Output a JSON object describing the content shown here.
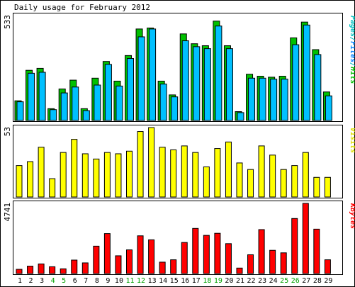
{
  "chart_data": {
    "type": "bar",
    "title": "Daily usage for February 2012",
    "categories": [
      "1",
      "2",
      "3",
      "4",
      "5",
      "6",
      "7",
      "8",
      "9",
      "10",
      "11",
      "12",
      "13",
      "14",
      "15",
      "16",
      "17",
      "18",
      "19",
      "20",
      "21",
      "22",
      "23",
      "24",
      "25",
      "26",
      "27",
      "28",
      "29"
    ],
    "weekend_categories": [
      "4",
      "5",
      "11",
      "12",
      "18",
      "19",
      "25",
      "26"
    ],
    "panels": [
      {
        "id": "top",
        "max_label": "533",
        "ymax": 533,
        "legend": [
          {
            "text": "Pages",
            "color": "#00c0c0"
          },
          {
            "text": "/",
            "color": "#00c0c0"
          },
          {
            "text": "Files",
            "color": "#0080ff"
          },
          {
            "text": "/",
            "color": "#00c0c0"
          },
          {
            "text": "Hits",
            "color": "#00c000"
          }
        ],
        "series": [
          {
            "name": "Hits",
            "color": "#00c000",
            "values": [
              100,
              255,
              265,
              60,
              160,
              205,
              60,
              215,
              300,
              200,
              330,
              465,
              470,
              200,
              130,
              440,
              390,
              380,
              505,
              380,
              45,
              235,
              225,
              220,
              225,
              420,
              500,
              360,
              145
            ]
          },
          {
            "name": "Files",
            "color": "#00c0ff",
            "values": [
              95,
              240,
              245,
              55,
              140,
              170,
              50,
              180,
              285,
              175,
              315,
              425,
              465,
              185,
              120,
              405,
              375,
              365,
              480,
              365,
              40,
              215,
              215,
              210,
              210,
              385,
              485,
              335,
              125
            ]
          },
          {
            "name": "Pages",
            "color": "#00b0b0",
            "values": [
              0,
              0,
              0,
              0,
              0,
              0,
              0,
              0,
              0,
              0,
              0,
              0,
              0,
              0,
              0,
              0,
              0,
              0,
              0,
              0,
              0,
              0,
              0,
              0,
              0,
              0,
              0,
              0,
              0
            ]
          }
        ]
      },
      {
        "id": "middle",
        "max_label": "53",
        "ymax": 53,
        "legend": [
          {
            "text": "Visits",
            "color": "#e0e000"
          }
        ],
        "series": [
          {
            "name": "Visits",
            "color": "#ffff00",
            "values": [
              24,
              27,
              38,
              14,
              34,
              44,
              33,
              29,
              34,
              33,
              35,
              50,
              53,
              38,
              36,
              39,
              34,
              23,
              37,
              42,
              26,
              21,
              39,
              32,
              21,
              24,
              34,
              15,
              15
            ]
          }
        ]
      },
      {
        "id": "bottom",
        "max_label": "4741",
        "ymax": 4741,
        "legend": [
          {
            "text": "KBytes",
            "color": "#ff0000"
          }
        ],
        "series": [
          {
            "name": "KBytes",
            "color": "#ff0000",
            "values": [
              285,
              500,
              650,
              460,
              320,
              910,
              720,
              1850,
              2700,
              1200,
              1600,
              2550,
              2280,
              770,
              930,
              2100,
              3050,
              2580,
              2720,
              2020,
              370,
              1270,
              2970,
              1570,
              1400,
              3720,
              4741,
              3000,
              930
            ]
          }
        ]
      }
    ]
  }
}
